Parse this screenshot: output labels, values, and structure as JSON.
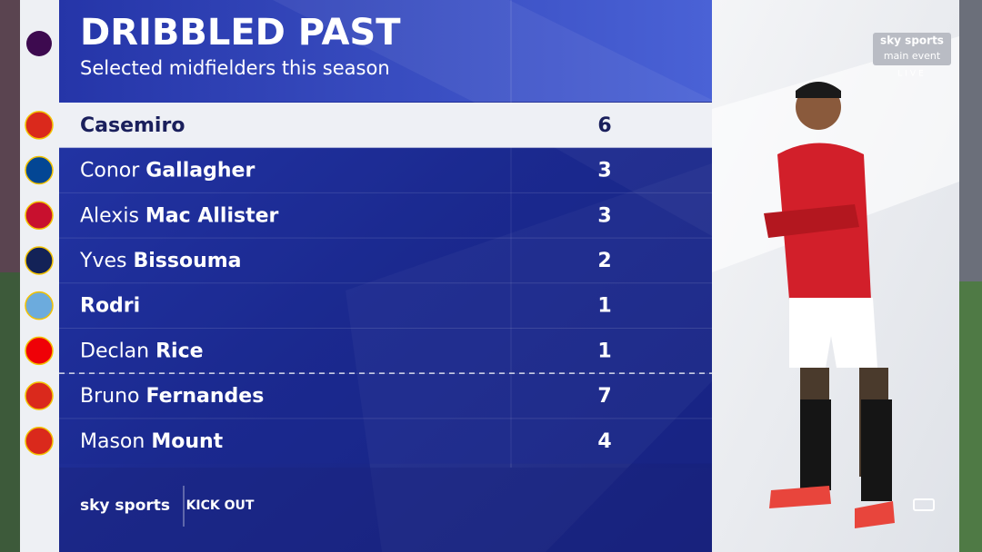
{
  "header": {
    "title": "DRIBBLED PAST",
    "subtitle": "Selected midfielders this season"
  },
  "table": {
    "rows": [
      {
        "last": "Casemiro",
        "value": 6
      },
      {
        "first": "Conor",
        "last": "Gallagher",
        "value": 3
      },
      {
        "first": "Alexis",
        "last": "Mac Allister",
        "value": 3
      },
      {
        "first": "Yves",
        "last": "Bissouma",
        "value": 2
      },
      {
        "last": "Rodri",
        "value": 1
      },
      {
        "first": "Declan",
        "last": "Rice",
        "value": 1
      },
      {
        "first": "Bruno",
        "last": "Fernandes",
        "value": 7
      },
      {
        "first": "Mason",
        "last": "Mount",
        "value": 4
      }
    ]
  },
  "branding": {
    "broadcaster": "sky sports",
    "channel": "main event",
    "status": "LIVE",
    "show": "KICK OUT"
  }
}
